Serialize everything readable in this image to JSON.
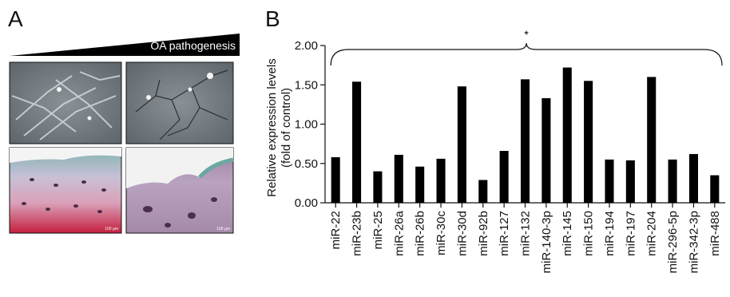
{
  "panel_a": {
    "letter": "A",
    "gradient_label": "OA pathogenesis",
    "scale_bar_labels": [
      "100 µm",
      "100 µm"
    ]
  },
  "panel_b": {
    "letter": "B"
  },
  "chart_data": {
    "type": "bar",
    "categories": [
      "miR-22",
      "miR-23b",
      "miR-25",
      "miR-26a",
      "miR-26b",
      "miR-30c",
      "miR-30d",
      "miR-92b",
      "miR-127",
      "miR-132",
      "miR-140-3p",
      "miR-145",
      "miR-150",
      "miR-194",
      "miR-197",
      "miR-204",
      "miR-296-5p",
      "miR-342-3p",
      "miR-488"
    ],
    "values": [
      0.58,
      1.54,
      0.4,
      0.61,
      0.46,
      0.56,
      1.48,
      0.29,
      0.66,
      1.57,
      1.33,
      1.72,
      1.55,
      0.55,
      0.54,
      1.6,
      0.55,
      0.62,
      0.35
    ],
    "ylabel_lines": [
      "Relative expression levels",
      "(fold of control)"
    ],
    "ylim": [
      0,
      2
    ],
    "yticks": [
      "0.00",
      "0.50",
      "1.00",
      "1.50",
      "2.00"
    ],
    "significance_marker": "*",
    "bar_color": "#000000"
  }
}
